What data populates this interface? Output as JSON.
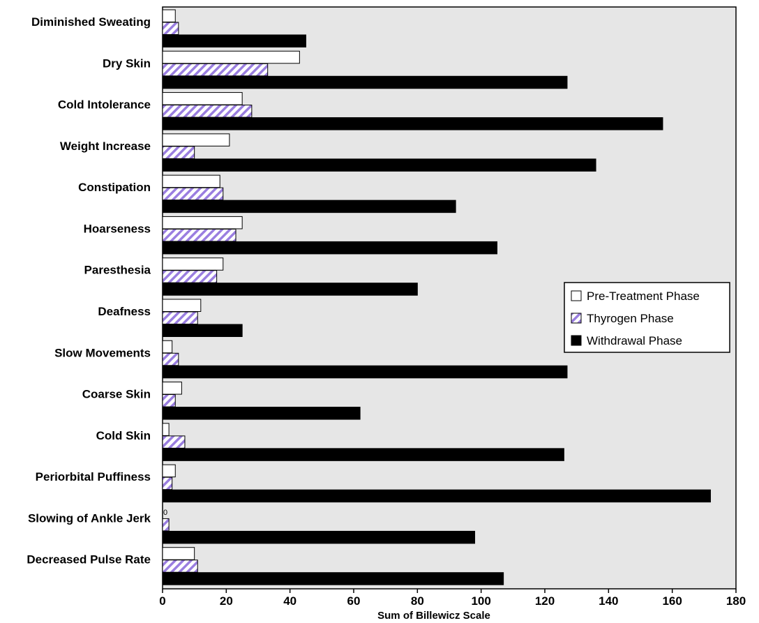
{
  "chart_data": {
    "type": "bar",
    "orientation": "horizontal",
    "title": "",
    "xlabel": "Sum of Billewicz Scale",
    "ylabel": "",
    "xlim": [
      0,
      180
    ],
    "xticks": [
      0,
      20,
      40,
      60,
      80,
      100,
      120,
      140,
      160,
      180
    ],
    "grid": false,
    "legend_position": "right",
    "categories": [
      "Diminished Sweating",
      "Dry Skin",
      "Cold Intolerance",
      "Weight Increase",
      "Constipation",
      "Hoarseness",
      "Paresthesia",
      "Deafness",
      "Slow Movements",
      "Coarse Skin",
      "Cold Skin",
      "Periorbital Puffiness",
      "Slowing of Ankle Jerk",
      "Decreased Pulse Rate"
    ],
    "series": [
      {
        "name": "Pre-Treatment Phase",
        "color": "#ffffff",
        "pattern": "none",
        "values": [
          4,
          43,
          25,
          21,
          18,
          25,
          19,
          12,
          3,
          6,
          2,
          4,
          0,
          10
        ]
      },
      {
        "name": "Thyrogen Phase",
        "color": "#9a7ee0",
        "pattern": "hatch",
        "values": [
          5,
          33,
          28,
          10,
          19,
          23,
          17,
          11,
          5,
          4,
          7,
          3,
          2,
          11
        ]
      },
      {
        "name": "Withdrawal Phase",
        "color": "#000000",
        "pattern": "none",
        "values": [
          45,
          127,
          157,
          136,
          92,
          105,
          80,
          25,
          127,
          62,
          126,
          172,
          98,
          107
        ]
      }
    ],
    "data_labels": [
      {
        "category": "Slowing of Ankle Jerk",
        "series": "Pre-Treatment Phase",
        "text": "0"
      }
    ]
  }
}
